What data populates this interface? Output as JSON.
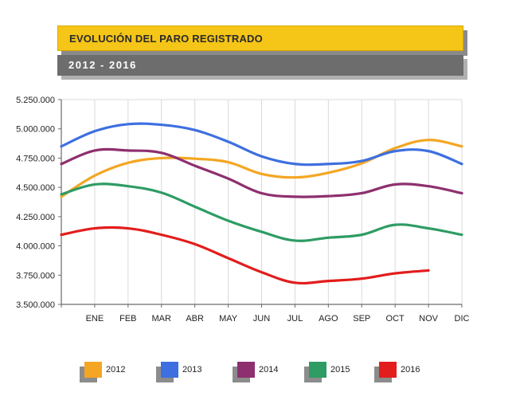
{
  "header": {
    "title": "EVOLUCIÓN DEL PARO REGISTRADO",
    "subtitle": "2012 - 2016"
  },
  "colors": {
    "title_bar": "#f5c518",
    "subtitle_bar": "#6d6d6d",
    "axis": "#6a6a6a",
    "grid": "#d9d9d9"
  },
  "chart_data": {
    "type": "line",
    "title": "EVOLUCIÓN DEL PARO REGISTRADO",
    "subtitle": "2012 - 2016",
    "xlabel": "",
    "ylabel": "",
    "categories": [
      "",
      "ENE",
      "FEB",
      "MAR",
      "ABR",
      "MAY",
      "JUN",
      "JUL",
      "AGO",
      "SEP",
      "OCT",
      "NOV",
      "DIC"
    ],
    "ylim": [
      3500000,
      5250000
    ],
    "yticks": [
      3500000,
      3750000,
      4000000,
      4250000,
      4500000,
      4750000,
      5000000,
      5250000
    ],
    "ytick_labels": [
      "3.500.000",
      "3.750.000",
      "4.000.000",
      "4.250.000",
      "4.500.000",
      "4.750.000",
      "5.000.000",
      "5.250.000"
    ],
    "grid": "vertical",
    "legend_position": "bottom",
    "series": [
      {
        "name": "2012",
        "color": "#f4a623",
        "values": [
          4420000,
          4600000,
          4710000,
          4750000,
          4745000,
          4715000,
          4615000,
          4585000,
          4625000,
          4705000,
          4835000,
          4905000,
          4850000
        ]
      },
      {
        "name": "2013",
        "color": "#3d6fe0",
        "values": [
          4850000,
          4980000,
          5040000,
          5035000,
          4990000,
          4890000,
          4765000,
          4700000,
          4700000,
          4725000,
          4810000,
          4810000,
          4700000
        ]
      },
      {
        "name": "2014",
        "color": "#8e2f6f",
        "values": [
          4700000,
          4815000,
          4815000,
          4795000,
          4685000,
          4575000,
          4450000,
          4420000,
          4425000,
          4450000,
          4525000,
          4510000,
          4450000
        ]
      },
      {
        "name": "2015",
        "color": "#2e9c63",
        "values": [
          4440000,
          4525000,
          4510000,
          4455000,
          4335000,
          4215000,
          4120000,
          4045000,
          4070000,
          4095000,
          4180000,
          4150000,
          4095000
        ]
      },
      {
        "name": "2016",
        "color": "#e31c1c",
        "values": [
          4095000,
          4150000,
          4150000,
          4095000,
          4015000,
          3895000,
          3775000,
          3685000,
          3700000,
          3720000,
          3765000,
          3790000,
          null
        ]
      }
    ]
  }
}
